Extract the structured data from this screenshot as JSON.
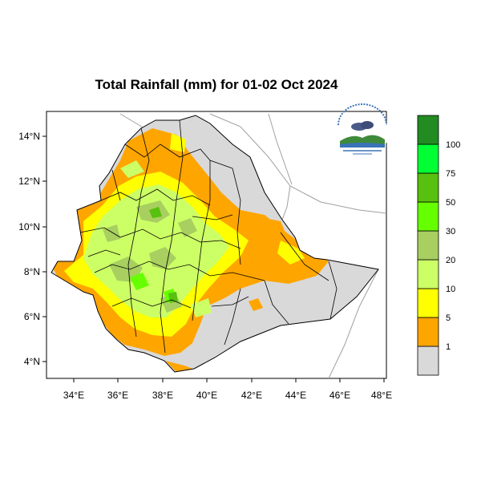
{
  "title": "Total Rainfall (mm) for 01-02 Oct 2024",
  "map": {
    "lon_range": [
      33,
      48.3
    ],
    "lat_range": [
      3.2,
      15
    ],
    "x_ticks": [
      "34°E",
      "36°E",
      "38°E",
      "40°E",
      "42°E",
      "44°E",
      "46°E",
      "48°E"
    ],
    "y_ticks": [
      "14°N",
      "12°N",
      "10°N",
      "8°N",
      "6°N",
      "4°N"
    ]
  },
  "colors": {
    "none": "#d9d9d9",
    "1-5": "#ffa500",
    "5-10": "#ffff00",
    "10-20": "#ccff66",
    "20-30": "#a8cf60",
    "30-50": "#66ff00",
    "50-75": "#58c00e",
    "75-100": "#00ff33",
    "100+": "#228b22"
  },
  "legend": {
    "labels": [
      "1",
      "5",
      "10",
      "20",
      "30",
      "50",
      "75",
      "100"
    ],
    "colors": [
      "#d9d9d9",
      "#ffa500",
      "#ffff00",
      "#ccff66",
      "#a8cf60",
      "#66ff00",
      "#58c00e",
      "#00ff33",
      "#228b22"
    ]
  },
  "logo": {
    "icon": "ethiopian-meteorology-institute-logo"
  }
}
